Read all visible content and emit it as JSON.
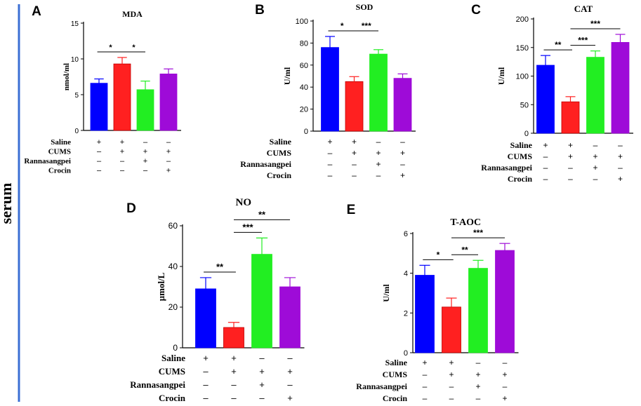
{
  "side_label": "serum",
  "treatment_labels": [
    "Saline",
    "CUMS",
    "Rannasangpei",
    "Crocin"
  ],
  "treatment_signs": [
    [
      "+",
      "+",
      "–",
      "–"
    ],
    [
      "–",
      "+",
      "+",
      "+"
    ],
    [
      "–",
      "–",
      "+",
      "–"
    ],
    [
      "–",
      "–",
      "–",
      "+"
    ]
  ],
  "group_colors": [
    "#0000ff",
    "#ff2020",
    "#22ee22",
    "#9e0bd8"
  ],
  "chart_data": [
    {
      "panel": "A",
      "type": "bar",
      "title": "MDA",
      "ylabel": "nmol/ml",
      "ylim": [
        0,
        15
      ],
      "yticks": [
        0,
        5,
        10,
        15
      ],
      "categories": [
        "Saline",
        "CUMS",
        "CUMS+Rannasangpei",
        "CUMS+Crocin"
      ],
      "values": [
        6.6,
        9.3,
        5.7,
        7.9
      ],
      "errors": [
        0.6,
        0.9,
        1.2,
        0.7
      ],
      "significance": [
        {
          "from": 0,
          "to": 1,
          "label": "*"
        },
        {
          "from": 1,
          "to": 2,
          "label": "*"
        }
      ]
    },
    {
      "panel": "B",
      "type": "bar",
      "title": "SOD",
      "ylabel": "U/ml",
      "ylim": [
        0,
        100
      ],
      "yticks": [
        0,
        20,
        40,
        60,
        80,
        100
      ],
      "categories": [
        "Saline",
        "CUMS",
        "CUMS+Rannasangpei",
        "CUMS+Crocin"
      ],
      "values": [
        76,
        45,
        70,
        48
      ],
      "errors": [
        10,
        4.5,
        4,
        4
      ],
      "significance": [
        {
          "from": 0,
          "to": 1,
          "label": "*"
        },
        {
          "from": 1,
          "to": 2,
          "label": "***"
        }
      ]
    },
    {
      "panel": "C",
      "type": "bar",
      "title": "CAT",
      "ylabel": "U/ml",
      "ylim": [
        0,
        200
      ],
      "yticks": [
        0,
        50,
        100,
        150,
        200
      ],
      "categories": [
        "Saline",
        "CUMS",
        "CUMS+Rannasangpei",
        "CUMS+Crocin"
      ],
      "values": [
        119,
        55,
        133,
        159
      ],
      "errors": [
        17,
        9,
        11,
        14
      ],
      "significance": [
        {
          "from": 0,
          "to": 1,
          "label": "**"
        },
        {
          "from": 1,
          "to": 2,
          "label": "***"
        },
        {
          "from": 1,
          "to": 3,
          "label": "***"
        }
      ]
    },
    {
      "panel": "D",
      "type": "bar",
      "title": "NO",
      "ylabel": "µmol/L",
      "ylim": [
        0,
        60
      ],
      "yticks": [
        0,
        20,
        40,
        60
      ],
      "categories": [
        "Saline",
        "CUMS",
        "CUMS+Rannasangpei",
        "CUMS+Crocin"
      ],
      "values": [
        29,
        10,
        46,
        30
      ],
      "errors": [
        5.5,
        2.5,
        8,
        4.5
      ],
      "significance": [
        {
          "from": 0,
          "to": 1,
          "label": "**"
        },
        {
          "from": 1,
          "to": 2,
          "label": "***"
        },
        {
          "from": 1,
          "to": 3,
          "label": "**"
        }
      ]
    },
    {
      "panel": "E",
      "type": "bar",
      "title": "T-AOC",
      "ylabel": "U/ml",
      "ylim": [
        0,
        6
      ],
      "yticks": [
        0,
        2,
        4,
        6
      ],
      "categories": [
        "Saline",
        "CUMS",
        "CUMS+Rannasangpei",
        "CUMS+Crocin"
      ],
      "values": [
        3.9,
        2.3,
        4.25,
        5.15
      ],
      "errors": [
        0.5,
        0.45,
        0.4,
        0.35
      ],
      "significance": [
        {
          "from": 0,
          "to": 1,
          "label": "*"
        },
        {
          "from": 1,
          "to": 2,
          "label": "**"
        },
        {
          "from": 1,
          "to": 3,
          "label": "***"
        }
      ]
    }
  ]
}
